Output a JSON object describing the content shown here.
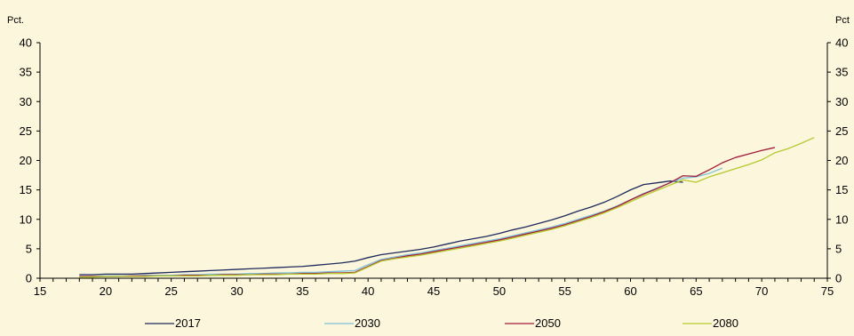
{
  "colors": {
    "background": "#FBF6DC",
    "axis": "#000000"
  },
  "chart_data": {
    "type": "line",
    "title": "",
    "xlabel": "",
    "ylabel_left": "Pct.",
    "ylabel_right": "Pct",
    "xlim": [
      15,
      75
    ],
    "ylim": [
      0,
      40
    ],
    "x_ticks": [
      15,
      20,
      25,
      30,
      35,
      40,
      45,
      50,
      55,
      60,
      65,
      70,
      75
    ],
    "y_ticks": [
      0,
      5,
      10,
      15,
      20,
      25,
      30,
      35,
      40
    ],
    "grid": false,
    "legend_position": "bottom",
    "series": [
      {
        "name": "2017",
        "color": "#1F2A5C",
        "points": [
          [
            18,
            0.6
          ],
          [
            19,
            0.6
          ],
          [
            20,
            0.7
          ],
          [
            21,
            0.7
          ],
          [
            22,
            0.7
          ],
          [
            23,
            0.8
          ],
          [
            24,
            0.9
          ],
          [
            25,
            1.0
          ],
          [
            26,
            1.1
          ],
          [
            27,
            1.2
          ],
          [
            28,
            1.3
          ],
          [
            29,
            1.4
          ],
          [
            30,
            1.5
          ],
          [
            31,
            1.6
          ],
          [
            32,
            1.7
          ],
          [
            33,
            1.8
          ],
          [
            34,
            1.9
          ],
          [
            35,
            2.0
          ],
          [
            36,
            2.2
          ],
          [
            37,
            2.4
          ],
          [
            38,
            2.6
          ],
          [
            39,
            2.9
          ],
          [
            40,
            3.5
          ],
          [
            41,
            4.0
          ],
          [
            42,
            4.3
          ],
          [
            43,
            4.6
          ],
          [
            44,
            4.9
          ],
          [
            45,
            5.3
          ],
          [
            46,
            5.8
          ],
          [
            47,
            6.3
          ],
          [
            48,
            6.7
          ],
          [
            49,
            7.1
          ],
          [
            50,
            7.6
          ],
          [
            51,
            8.2
          ],
          [
            52,
            8.7
          ],
          [
            53,
            9.3
          ],
          [
            54,
            9.9
          ],
          [
            55,
            10.6
          ],
          [
            56,
            11.4
          ],
          [
            57,
            12.1
          ],
          [
            58,
            12.9
          ],
          [
            59,
            13.9
          ],
          [
            60,
            15.0
          ],
          [
            61,
            15.9
          ],
          [
            62,
            16.2
          ],
          [
            63,
            16.5
          ],
          [
            64,
            16.3
          ]
        ]
      },
      {
        "name": "2030",
        "color": "#7FC3D8",
        "points": [
          [
            18,
            0.3
          ],
          [
            19,
            0.3
          ],
          [
            20,
            0.4
          ],
          [
            21,
            0.4
          ],
          [
            22,
            0.4
          ],
          [
            23,
            0.5
          ],
          [
            24,
            0.5
          ],
          [
            25,
            0.5
          ],
          [
            26,
            0.6
          ],
          [
            27,
            0.6
          ],
          [
            28,
            0.7
          ],
          [
            29,
            0.7
          ],
          [
            30,
            0.7
          ],
          [
            31,
            0.8
          ],
          [
            32,
            0.8
          ],
          [
            33,
            0.9
          ],
          [
            34,
            0.9
          ],
          [
            35,
            1.0
          ],
          [
            36,
            1.0
          ],
          [
            37,
            1.1
          ],
          [
            38,
            1.2
          ],
          [
            39,
            1.3
          ],
          [
            40,
            2.3
          ],
          [
            41,
            3.2
          ],
          [
            42,
            3.6
          ],
          [
            43,
            4.0
          ],
          [
            44,
            4.3
          ],
          [
            45,
            4.7
          ],
          [
            46,
            5.1
          ],
          [
            47,
            5.5
          ],
          [
            48,
            5.9
          ],
          [
            49,
            6.3
          ],
          [
            50,
            6.7
          ],
          [
            51,
            7.2
          ],
          [
            52,
            7.7
          ],
          [
            53,
            8.2
          ],
          [
            54,
            8.7
          ],
          [
            55,
            9.3
          ],
          [
            56,
            10.0
          ],
          [
            57,
            10.7
          ],
          [
            58,
            11.4
          ],
          [
            59,
            12.3
          ],
          [
            60,
            13.3
          ],
          [
            61,
            14.4
          ],
          [
            62,
            15.3
          ],
          [
            63,
            16.2
          ],
          [
            64,
            17.0
          ],
          [
            65,
            17.2
          ],
          [
            66,
            17.8
          ],
          [
            67,
            18.7
          ]
        ]
      },
      {
        "name": "2050",
        "color": "#A01C38",
        "points": [
          [
            18,
            0.3
          ],
          [
            19,
            0.3
          ],
          [
            20,
            0.3
          ],
          [
            21,
            0.3
          ],
          [
            22,
            0.4
          ],
          [
            23,
            0.4
          ],
          [
            24,
            0.4
          ],
          [
            25,
            0.4
          ],
          [
            26,
            0.5
          ],
          [
            27,
            0.5
          ],
          [
            28,
            0.5
          ],
          [
            29,
            0.6
          ],
          [
            30,
            0.6
          ],
          [
            31,
            0.6
          ],
          [
            32,
            0.7
          ],
          [
            33,
            0.7
          ],
          [
            34,
            0.7
          ],
          [
            35,
            0.8
          ],
          [
            36,
            0.8
          ],
          [
            37,
            0.9
          ],
          [
            38,
            0.9
          ],
          [
            39,
            1.0
          ],
          [
            40,
            2.0
          ],
          [
            41,
            3.0
          ],
          [
            42,
            3.4
          ],
          [
            43,
            3.8
          ],
          [
            44,
            4.1
          ],
          [
            45,
            4.5
          ],
          [
            46,
            4.9
          ],
          [
            47,
            5.3
          ],
          [
            48,
            5.7
          ],
          [
            49,
            6.1
          ],
          [
            50,
            6.5
          ],
          [
            51,
            7.0
          ],
          [
            52,
            7.5
          ],
          [
            53,
            8.0
          ],
          [
            54,
            8.5
          ],
          [
            55,
            9.1
          ],
          [
            56,
            9.8
          ],
          [
            57,
            10.5
          ],
          [
            58,
            11.3
          ],
          [
            59,
            12.2
          ],
          [
            60,
            13.3
          ],
          [
            61,
            14.3
          ],
          [
            62,
            15.2
          ],
          [
            63,
            16.2
          ],
          [
            64,
            17.4
          ],
          [
            65,
            17.3
          ],
          [
            66,
            18.4
          ],
          [
            67,
            19.6
          ],
          [
            68,
            20.5
          ],
          [
            69,
            21.1
          ],
          [
            70,
            21.7
          ],
          [
            71,
            22.2
          ]
        ]
      },
      {
        "name": "2080",
        "color": "#B5C92E",
        "points": [
          [
            18,
            0.2
          ],
          [
            19,
            0.2
          ],
          [
            20,
            0.3
          ],
          [
            21,
            0.3
          ],
          [
            22,
            0.3
          ],
          [
            23,
            0.3
          ],
          [
            24,
            0.4
          ],
          [
            25,
            0.4
          ],
          [
            26,
            0.4
          ],
          [
            27,
            0.4
          ],
          [
            28,
            0.5
          ],
          [
            29,
            0.5
          ],
          [
            30,
            0.5
          ],
          [
            31,
            0.6
          ],
          [
            32,
            0.6
          ],
          [
            33,
            0.6
          ],
          [
            34,
            0.7
          ],
          [
            35,
            0.7
          ],
          [
            36,
            0.7
          ],
          [
            37,
            0.8
          ],
          [
            38,
            0.8
          ],
          [
            39,
            0.9
          ],
          [
            40,
            1.9
          ],
          [
            41,
            2.9
          ],
          [
            42,
            3.3
          ],
          [
            43,
            3.6
          ],
          [
            44,
            3.9
          ],
          [
            45,
            4.3
          ],
          [
            46,
            4.7
          ],
          [
            47,
            5.1
          ],
          [
            48,
            5.5
          ],
          [
            49,
            5.9
          ],
          [
            50,
            6.3
          ],
          [
            51,
            6.8
          ],
          [
            52,
            7.3
          ],
          [
            53,
            7.8
          ],
          [
            54,
            8.3
          ],
          [
            55,
            8.9
          ],
          [
            56,
            9.6
          ],
          [
            57,
            10.3
          ],
          [
            58,
            11.1
          ],
          [
            59,
            12.0
          ],
          [
            60,
            13.0
          ],
          [
            61,
            14.0
          ],
          [
            62,
            14.9
          ],
          [
            63,
            15.8
          ],
          [
            64,
            16.7
          ],
          [
            65,
            16.3
          ],
          [
            66,
            17.2
          ],
          [
            67,
            17.9
          ],
          [
            68,
            18.6
          ],
          [
            69,
            19.3
          ],
          [
            70,
            20.1
          ],
          [
            71,
            21.3
          ],
          [
            72,
            22.0
          ],
          [
            73,
            22.9
          ],
          [
            74,
            23.9
          ]
        ]
      }
    ]
  }
}
